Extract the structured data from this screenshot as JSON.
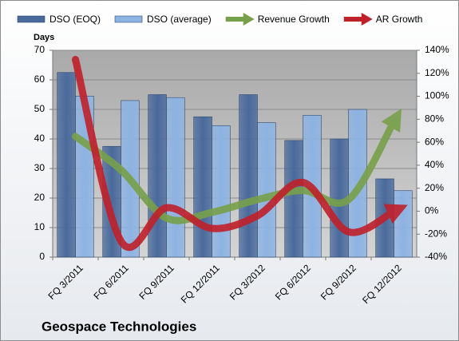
{
  "chart_data": {
    "type": "bar-line",
    "title": "Geospace Technologies",
    "y_label": "Days",
    "categories": [
      "FQ 3/2011",
      "FQ 6/2011",
      "FQ 9/2011",
      "FQ 12/2011",
      "FQ 3/2012",
      "FQ 6/2012",
      "FQ 9/2012",
      "FQ 12/2012"
    ],
    "series": [
      {
        "name": "DSO (EOQ)",
        "color": "#4a6a9c",
        "kind": "bar",
        "values": [
          62.5,
          37.5,
          55,
          47.5,
          55,
          39.5,
          40,
          26.5
        ]
      },
      {
        "name": "DSO (average)",
        "color": "#8db3e2",
        "kind": "bar",
        "values": [
          54.5,
          53,
          54,
          44.5,
          45.5,
          48,
          50,
          22.5
        ]
      },
      {
        "name": "Revenue Growth",
        "color": "#77a04a",
        "kind": "line",
        "axis": "y2",
        "values": [
          65,
          36,
          -6,
          -1,
          10,
          18,
          10,
          78
        ]
      },
      {
        "name": "AR Growth",
        "color": "#c0202a",
        "kind": "line",
        "axis": "y2",
        "values": [
          132,
          -26,
          3,
          -15,
          -4,
          25,
          -18,
          0
        ]
      }
    ],
    "ylim": [
      0,
      70
    ],
    "yticks": [
      0,
      10,
      20,
      30,
      40,
      50,
      60,
      70
    ],
    "y2lim": [
      -40,
      140
    ],
    "y2ticks": [
      {
        "value": -40,
        "label": "-40%"
      },
      {
        "value": -20,
        "label": "-20%"
      },
      {
        "value": 0,
        "label": "0%"
      },
      {
        "value": 20,
        "label": "20%"
      },
      {
        "value": 40,
        "label": "40%"
      },
      {
        "value": 60,
        "label": "60%"
      },
      {
        "value": 80,
        "label": "80%"
      },
      {
        "value": 100,
        "label": "100%"
      },
      {
        "value": 120,
        "label": "120%"
      },
      {
        "value": 140,
        "label": "140%"
      }
    ],
    "grid": true
  }
}
